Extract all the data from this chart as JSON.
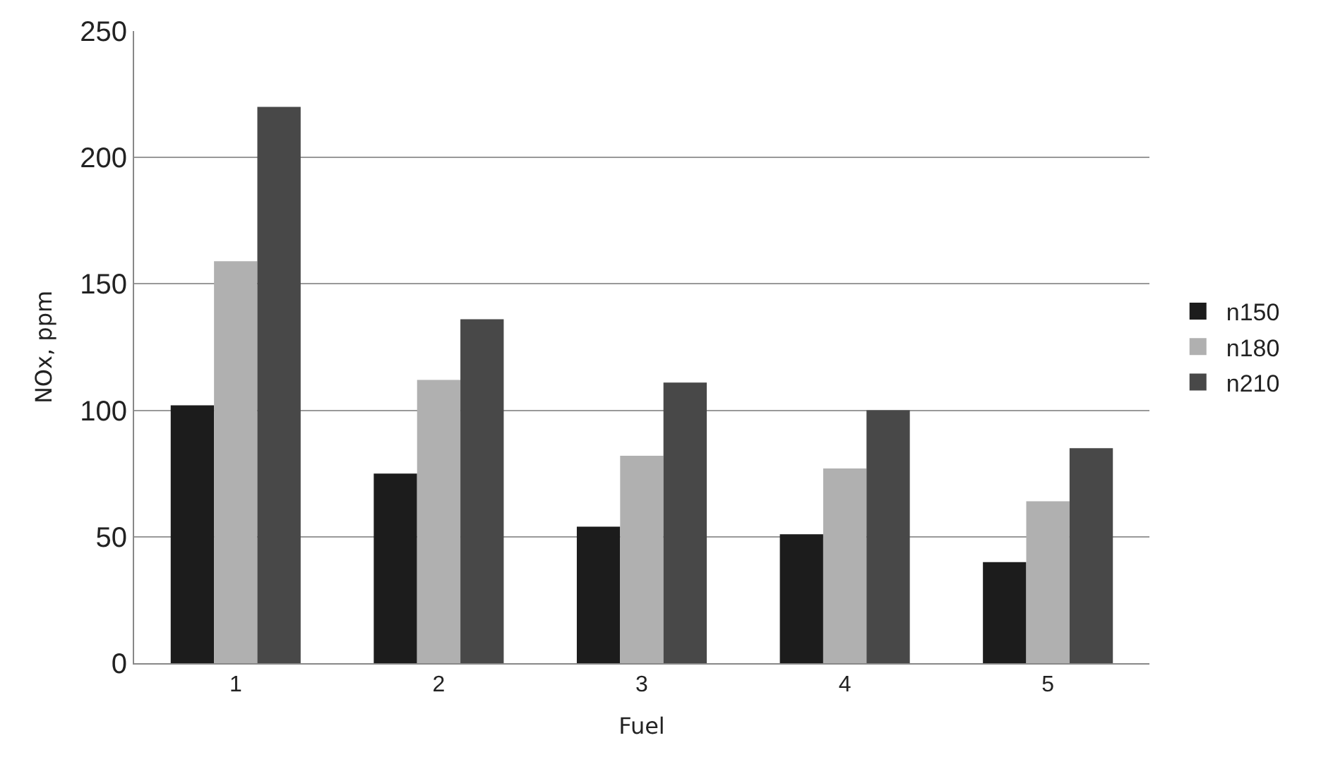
{
  "chart_data": {
    "type": "bar",
    "xlabel": "Fuel",
    "ylabel": "NOx, ppm",
    "categories": [
      "1",
      "2",
      "3",
      "4",
      "5"
    ],
    "series": [
      {
        "name": "n150",
        "color": "#1c1c1c",
        "values": [
          102,
          75,
          54,
          51,
          40
        ]
      },
      {
        "name": "n180",
        "color": "#b0b0b0",
        "values": [
          159,
          112,
          82,
          77,
          64
        ]
      },
      {
        "name": "n210",
        "color": "#484848",
        "values": [
          220,
          136,
          111,
          100,
          85
        ]
      }
    ],
    "ylim": [
      0,
      250
    ],
    "yticks": [
      0,
      50,
      100,
      150,
      200,
      250
    ],
    "grid": "y",
    "legend": "right"
  }
}
